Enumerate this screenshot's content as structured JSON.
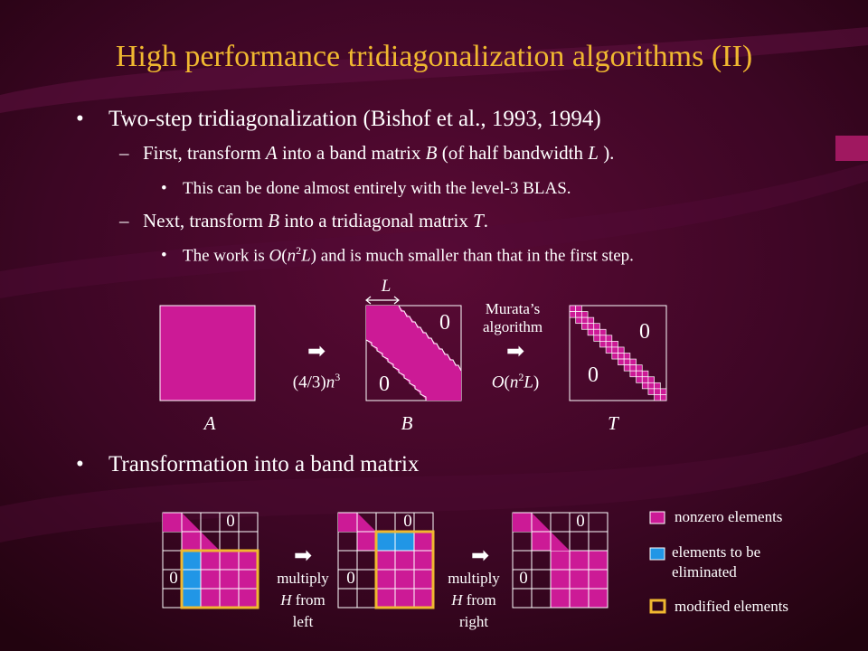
{
  "slide": {
    "title": "High performance tridiagonalization algorithms (II)",
    "bullets": {
      "b1": {
        "bullet": "•",
        "text": "Two-step tridiagonalization (Bishof et al., 1993, 1994)"
      },
      "b1a": {
        "dash": "–",
        "pre": "First, transform ",
        "A": "A",
        "mid": " into a band matrix ",
        "B": "B",
        "mid2": " (of half bandwidth ",
        "L": "L",
        "post": " )."
      },
      "b1a1": {
        "bullet": "•",
        "text": "This can be done almost entirely with the level-3 BLAS."
      },
      "b1b": {
        "dash": "–",
        "pre": "Next, transform ",
        "B": "B",
        "mid": " into a tridiagonal matrix ",
        "T": "T",
        "post": "."
      },
      "b1b1": {
        "bullet": "•",
        "pre": "The work is ",
        "O": "O",
        "paren_open": "(",
        "n": "n",
        "sup": "2",
        "L": "L",
        "post": ") and is much smaller than that in the first step."
      },
      "b2": {
        "bullet": "•",
        "text": "Transformation into a band matrix"
      }
    },
    "diagram1": {
      "label_A": "A",
      "label_B": "B",
      "label_T": "T",
      "label_L": "L",
      "zero": "0",
      "arrow": "➡",
      "cost1": {
        "open": "(4/3)",
        "n": "n",
        "sup": "3"
      },
      "murata_line1": "Murata’s",
      "murata_line2": "algorithm",
      "cost2": {
        "O": "O",
        "open": "(",
        "n": "n",
        "sup": "2",
        "L": "L",
        "close": ")"
      }
    },
    "diagram2": {
      "zero": "0",
      "arrow": "➡",
      "step1": {
        "line1": "multiply",
        "H": "H",
        "line2": " from",
        "line3": "left"
      },
      "step2": {
        "line1": "multiply",
        "H": "H",
        "line2": " from",
        "line3": "right"
      }
    },
    "legend": {
      "nonzero": "nonzero elements",
      "elim_line1": "elements to be",
      "elim_line2": "eliminated",
      "modified": "modified elements"
    },
    "colors": {
      "magenta": "#cc1a96",
      "blue": "#2196e6",
      "gold": "#f0b830",
      "title": "#f0b830"
    }
  }
}
